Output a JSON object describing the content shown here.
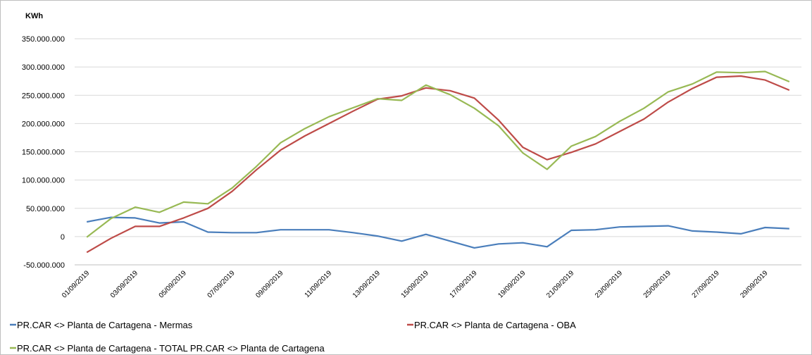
{
  "chart_data": {
    "type": "line",
    "y_label": "KWh",
    "categories": [
      "01/09/2019",
      null,
      "03/09/2019",
      null,
      "05/09/2019",
      null,
      "07/09/2019",
      null,
      "09/09/2019",
      null,
      "11/09/2019",
      null,
      "13/09/2019",
      null,
      "15/09/2019",
      null,
      "17/09/2019",
      null,
      "19/09/2019",
      null,
      "21/09/2019",
      null,
      "23/09/2019",
      null,
      "25/09/2019",
      null,
      "27/09/2019",
      null,
      "29/09/2019",
      null
    ],
    "series": [
      {
        "name": "PR.CAR <> Planta de Cartagena - Mermas",
        "color": "#4a7ebb",
        "values": [
          26000000,
          34000000,
          33000000,
          24000000,
          26000000,
          8000000,
          7000000,
          7000000,
          12000000,
          12000000,
          12000000,
          7000000,
          1000000,
          -8000000,
          4000000,
          -8000000,
          -20000000,
          -13000000,
          -11000000,
          -18000000,
          11000000,
          12000000,
          17000000,
          18000000,
          19000000,
          10000000,
          8000000,
          5000000,
          16000000,
          14000000
        ]
      },
      {
        "name": "PR.CAR <> Planta de Cartagena - OBA",
        "color": "#be4b48",
        "values": [
          -28000000,
          -3000000,
          18000000,
          18000000,
          33000000,
          50000000,
          80000000,
          118000000,
          153000000,
          178000000,
          200000000,
          222000000,
          243000000,
          249000000,
          263000000,
          258000000,
          245000000,
          206000000,
          158000000,
          136000000,
          149000000,
          164000000,
          186000000,
          208000000,
          238000000,
          262000000,
          282000000,
          284000000,
          277000000,
          259000000
        ]
      },
      {
        "name": "PR.CAR <> Planta de Cartagena - TOTAL PR.CAR <> Planta de Cartagena",
        "color": "#98b954",
        "values": [
          -1000000,
          32000000,
          52000000,
          43000000,
          61000000,
          58000000,
          86000000,
          124000000,
          166000000,
          191000000,
          212000000,
          228000000,
          244000000,
          241000000,
          268000000,
          251000000,
          227000000,
          196000000,
          148000000,
          119000000,
          160000000,
          177000000,
          204000000,
          227000000,
          256000000,
          270000000,
          291000000,
          290000000,
          292000000,
          274000000
        ]
      }
    ],
    "ylim": [
      -50000000,
      350000000
    ],
    "yticks": [
      {
        "value": -50000000,
        "label": "-50.000.000"
      },
      0,
      {
        "value": 50000000,
        "label": "50.000.000"
      },
      {
        "value": 100000000,
        "label": "100.000.000"
      },
      {
        "value": 150000000,
        "label": "150.000.000"
      },
      {
        "value": 200000000,
        "label": "200.000.000"
      },
      {
        "value": 250000000,
        "label": "250.000.000"
      },
      {
        "value": 300000000,
        "label": "300.000.000"
      },
      {
        "value": 350000000,
        "label": "350.000.000"
      }
    ],
    "grid": true
  }
}
